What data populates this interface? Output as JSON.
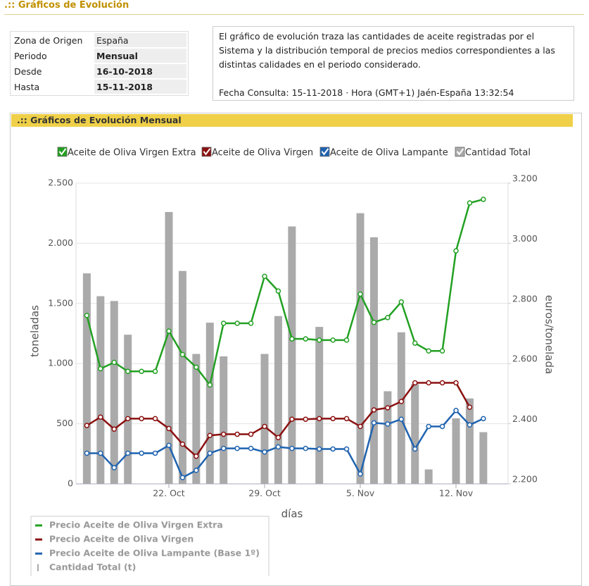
{
  "header": {
    "title": ".:: Gráficos de Evolución"
  },
  "info": {
    "rows": [
      [
        "Zona de Origen",
        "España"
      ],
      [
        "Periodo",
        "Mensual"
      ],
      [
        "Desde",
        "16-10-2018"
      ],
      [
        "Hasta",
        "15-11-2018"
      ]
    ]
  },
  "description": {
    "text": "El gráfico de evolución traza las cantidades de aceite registradas por el Sistema y la distribución temporal de precios medios correspondientes a las distintas calidades en el periodo considerado.",
    "query": "Fecha Consulta: 15-11-2018 · Hora (GMT+1) Jaén-España 13:32:54"
  },
  "panel": {
    "title": ".:: Gráficos de Evolución  Mensual"
  },
  "filters": [
    {
      "label": "Aceite de Oliva Virgen Extra",
      "color": "#22a022"
    },
    {
      "label": "Aceite de Oliva Virgen",
      "color": "#8b1010"
    },
    {
      "label": "Aceite de Oliva Lampante",
      "color": "#1f63b0"
    },
    {
      "label": "Cantidad Total",
      "color": "#aaaaaa"
    }
  ],
  "chart_data": {
    "type": "combo",
    "xlabel": "días",
    "ylabel": "toneladas",
    "y2label": "euros/tonelada",
    "categories": [
      null,
      null,
      null,
      null,
      null,
      null,
      "22. Oct",
      null,
      null,
      null,
      null,
      null,
      null,
      "29. Oct",
      null,
      null,
      null,
      null,
      null,
      null,
      "5. Nov",
      null,
      null,
      null,
      null,
      null,
      null,
      "12. Nov",
      null,
      null
    ],
    "ylim": [
      0,
      2500
    ],
    "yticks": [
      0,
      500,
      {
        "value": 1000,
        "label": "1.000"
      },
      {
        "value": 1500,
        "label": "1.500"
      },
      {
        "value": 2000,
        "label": "2.000"
      },
      {
        "value": 2500,
        "label": "2.500"
      }
    ],
    "y2lim": [
      2200,
      3200
    ],
    "y2ticks": [
      {
        "value": 2200,
        "label": "2.200"
      },
      {
        "value": 2400,
        "label": "2.400"
      },
      {
        "value": 2600,
        "label": "2.600"
      },
      {
        "value": 2800,
        "label": "2.800"
      },
      {
        "value": 3000,
        "label": "3.000"
      },
      {
        "value": 3200,
        "label": "3.200"
      }
    ],
    "grid": true,
    "series": [
      {
        "name": "Cantidad Total (t)",
        "type": "bar",
        "color": "#aaaaaa",
        "values": [
          1750,
          1560,
          1520,
          1240,
          null,
          null,
          2260,
          1770,
          1080,
          1340,
          1060,
          null,
          null,
          1080,
          1395,
          2140,
          null,
          1305,
          null,
          null,
          2250,
          2050,
          770,
          1260,
          830,
          120,
          null,
          545,
          710,
          430
        ]
      },
      {
        "name": "Precio Aceite de Oliva Virgen Extra",
        "type": "line",
        "axis": "y2",
        "color": "#22a022",
        "values": [
          2760,
          2583,
          2604,
          2574,
          2574,
          2574,
          2708,
          2630,
          2588,
          2529,
          2734,
          2734,
          2734,
          2890,
          2841,
          2682,
          2682,
          2678,
          2678,
          2678,
          2831,
          2737,
          2753,
          2805,
          2668,
          2642,
          2642,
          2975,
          3134,
          3146
        ]
      },
      {
        "name": "Precio Aceite de Oliva Virgen",
        "type": "line",
        "axis": "y2",
        "color": "#8b1010",
        "values": [
          2394,
          2422,
          2382,
          2417,
          2417,
          2417,
          2384,
          2332,
          2292,
          2361,
          2365,
          2365,
          2365,
          2391,
          2354,
          2415,
          2415,
          2417,
          2417,
          2417,
          2391,
          2446,
          2453,
          2474,
          2536,
          2536,
          2536,
          2536,
          2455,
          null
        ]
      },
      {
        "name": "Precio Aceite de Oliva Lampante (Base 1º)",
        "type": "line",
        "axis": "y2",
        "color": "#1f63b0",
        "values": [
          2302,
          2302,
          2254,
          2302,
          2302,
          2302,
          2328,
          2221,
          2245,
          2302,
          2318,
          2318,
          2318,
          2306,
          2323,
          2318,
          2318,
          2316,
          2316,
          2316,
          2233,
          2403,
          2399,
          2415,
          2316,
          2391,
          2391,
          2444,
          2396,
          2417
        ]
      }
    ]
  }
}
